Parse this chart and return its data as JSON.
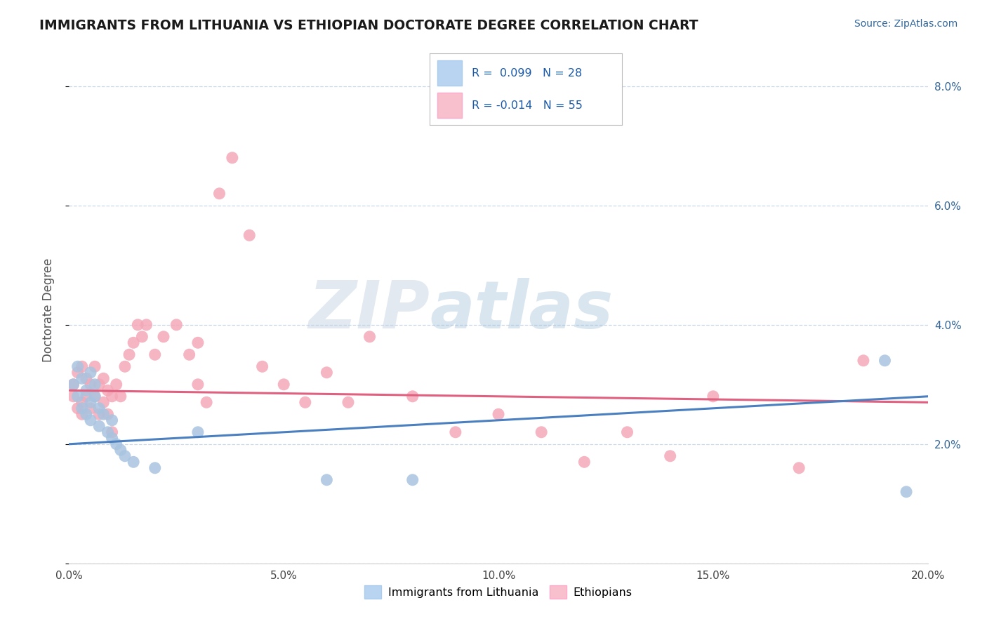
{
  "title": "IMMIGRANTS FROM LITHUANIA VS ETHIOPIAN DOCTORATE DEGREE CORRELATION CHART",
  "source": "Source: ZipAtlas.com",
  "xlabel": "",
  "ylabel": "Doctorate Degree",
  "xlim": [
    0.0,
    0.2
  ],
  "ylim": [
    0.0,
    0.085
  ],
  "xticks": [
    0.0,
    0.05,
    0.1,
    0.15,
    0.2
  ],
  "xtick_labels": [
    "0.0%",
    "5.0%",
    "10.0%",
    "15.0%",
    "20.0%"
  ],
  "yticks_right": [
    0.02,
    0.04,
    0.06,
    0.08
  ],
  "ytick_labels_right": [
    "2.0%",
    "4.0%",
    "6.0%",
    "8.0%"
  ],
  "blue_color": "#a8c4e0",
  "pink_color": "#f4a8b8",
  "blue_line_color": "#4a7fc0",
  "pink_line_color": "#e06080",
  "legend_blue_color": "#b8d4f0",
  "legend_pink_color": "#f8c0cc",
  "R_blue": 0.099,
  "N_blue": 28,
  "R_pink": -0.014,
  "N_pink": 55,
  "blue_scatter_x": [
    0.001,
    0.002,
    0.002,
    0.003,
    0.003,
    0.004,
    0.004,
    0.005,
    0.005,
    0.005,
    0.006,
    0.006,
    0.007,
    0.007,
    0.008,
    0.009,
    0.01,
    0.01,
    0.011,
    0.012,
    0.013,
    0.015,
    0.02,
    0.03,
    0.06,
    0.08,
    0.19,
    0.195
  ],
  "blue_scatter_y": [
    0.03,
    0.033,
    0.028,
    0.031,
    0.026,
    0.029,
    0.025,
    0.032,
    0.027,
    0.024,
    0.03,
    0.028,
    0.026,
    0.023,
    0.025,
    0.022,
    0.024,
    0.021,
    0.02,
    0.019,
    0.018,
    0.017,
    0.016,
    0.022,
    0.014,
    0.014,
    0.034,
    0.012
  ],
  "pink_scatter_x": [
    0.001,
    0.001,
    0.002,
    0.002,
    0.003,
    0.003,
    0.003,
    0.004,
    0.004,
    0.005,
    0.005,
    0.006,
    0.006,
    0.007,
    0.007,
    0.008,
    0.008,
    0.009,
    0.009,
    0.01,
    0.01,
    0.011,
    0.012,
    0.013,
    0.014,
    0.015,
    0.016,
    0.017,
    0.018,
    0.02,
    0.022,
    0.025,
    0.028,
    0.03,
    0.03,
    0.032,
    0.035,
    0.038,
    0.042,
    0.045,
    0.05,
    0.055,
    0.06,
    0.065,
    0.07,
    0.08,
    0.09,
    0.1,
    0.11,
    0.12,
    0.13,
    0.14,
    0.15,
    0.17,
    0.185
  ],
  "pink_scatter_y": [
    0.03,
    0.028,
    0.032,
    0.026,
    0.033,
    0.027,
    0.025,
    0.031,
    0.028,
    0.03,
    0.026,
    0.033,
    0.028,
    0.025,
    0.03,
    0.031,
    0.027,
    0.029,
    0.025,
    0.028,
    0.022,
    0.03,
    0.028,
    0.033,
    0.035,
    0.037,
    0.04,
    0.038,
    0.04,
    0.035,
    0.038,
    0.04,
    0.035,
    0.037,
    0.03,
    0.027,
    0.062,
    0.068,
    0.055,
    0.033,
    0.03,
    0.027,
    0.032,
    0.027,
    0.038,
    0.028,
    0.022,
    0.025,
    0.022,
    0.017,
    0.022,
    0.018,
    0.028,
    0.016,
    0.034
  ],
  "watermark_zip": "ZIP",
  "watermark_atlas": "atlas",
  "background_color": "#ffffff",
  "grid_color": "#c8d8ea",
  "legend1_label": "Immigrants from Lithuania",
  "legend2_label": "Ethiopians"
}
